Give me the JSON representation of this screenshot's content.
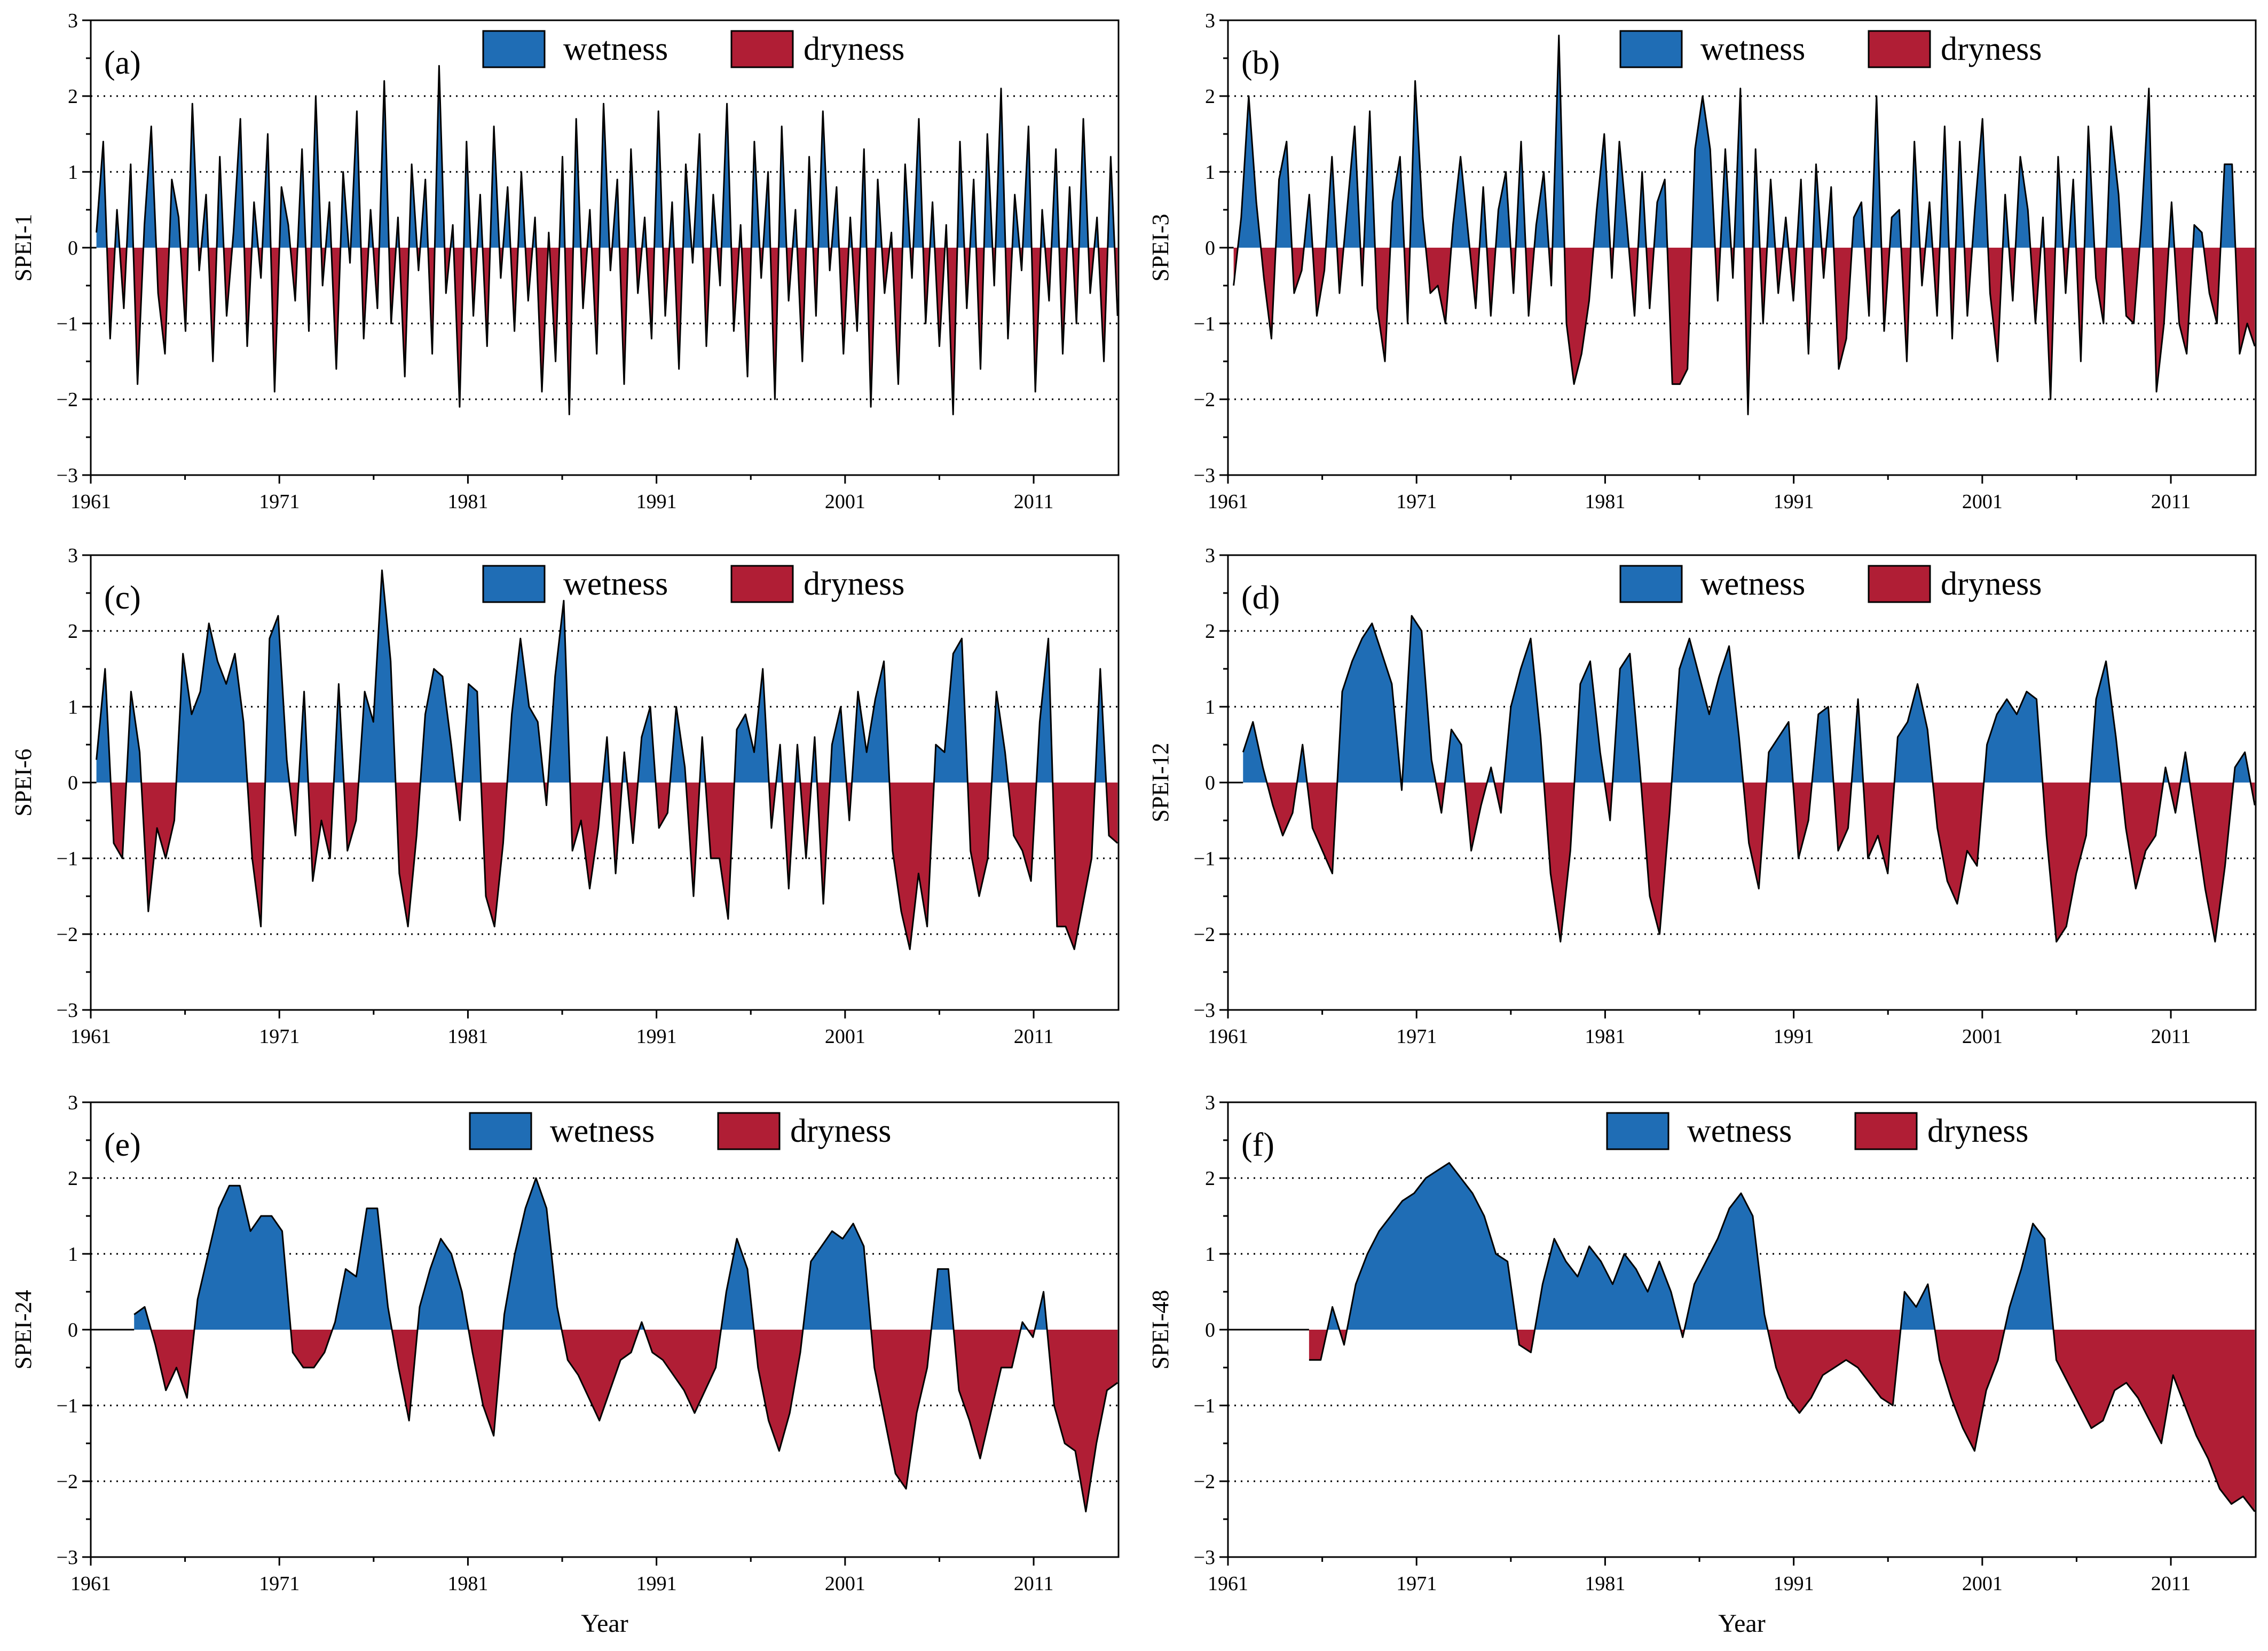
{
  "figure": {
    "year_label": "Year",
    "colors": {
      "wetness": "#1f6db5",
      "dryness": "#b01e35",
      "line": "#000000",
      "grid": "#000000"
    },
    "legend": {
      "wet_label": "wetness",
      "dry_label": "dryness"
    }
  },
  "chart_data": [
    {
      "type": "area",
      "panel_label": "(a)",
      "ylabel": "SPEI-1",
      "xlabel": "",
      "x_range": [
        1961,
        2015.5
      ],
      "ylim": [
        -3,
        3
      ],
      "y_ticks": [
        -3,
        -2,
        -1,
        0,
        1,
        2,
        3
      ],
      "x_ticks": [
        1961,
        1971,
        1981,
        1991,
        2001,
        2011
      ],
      "grid": "horizontal dotted at -2, -1, 1, 2",
      "legend_position": "top-center",
      "start_year": 1961.3,
      "points": [
        0.2,
        1.4,
        -1.2,
        0.5,
        -0.8,
        1.1,
        -1.8,
        0.3,
        1.6,
        -0.6,
        -1.4,
        0.9,
        0.4,
        -1.1,
        1.9,
        -0.3,
        0.7,
        -1.5,
        1.2,
        -0.9,
        0.2,
        1.7,
        -1.3,
        0.6,
        -0.4,
        1.5,
        -1.9,
        0.8,
        0.3,
        -0.7,
        1.3,
        -1.1,
        2.0,
        -0.5,
        0.6,
        -1.6,
        1.0,
        -0.2,
        1.8,
        -1.2,
        0.5,
        -0.8,
        2.2,
        -1.0,
        0.4,
        -1.7,
        1.1,
        -0.3,
        0.9,
        -1.4,
        2.4,
        -0.6,
        0.3,
        -2.1,
        1.4,
        -0.9,
        0.7,
        -1.3,
        1.6,
        -0.4,
        0.8,
        -1.1,
        1.0,
        -0.7,
        0.4,
        -1.9,
        0.2,
        -1.5,
        1.2,
        -2.2,
        1.7,
        -0.8,
        0.5,
        -1.4,
        1.9,
        -0.3,
        0.9,
        -1.8,
        1.3,
        -0.6,
        0.4,
        -1.2,
        1.8,
        -0.9,
        0.6,
        -1.6,
        1.1,
        -0.2,
        1.5,
        -1.3,
        0.7,
        -0.5,
        1.9,
        -1.1,
        0.3,
        -1.7,
        1.4,
        -0.4,
        1.0,
        -2.0,
        1.6,
        -0.7,
        0.5,
        -1.5,
        1.2,
        -0.9,
        1.8,
        -0.3,
        0.8,
        -1.4,
        0.4,
        -1.1,
        1.3,
        -2.1,
        0.9,
        -0.6,
        0.2,
        -1.8,
        1.1,
        -0.4,
        1.7,
        -1.0,
        0.6,
        -1.3,
        0.3,
        -2.2,
        1.4,
        -0.8,
        0.9,
        -1.6,
        1.5,
        -0.5,
        2.1,
        -1.2,
        0.7,
        -0.3,
        1.6,
        -1.9,
        0.5,
        -0.7,
        1.3,
        -1.4,
        0.8,
        -1.0,
        1.7,
        -0.6,
        0.4,
        -1.5,
        1.2,
        -0.9
      ]
    },
    {
      "type": "area",
      "panel_label": "(b)",
      "ylabel": "SPEI-3",
      "xlabel": "",
      "x_range": [
        1961,
        2015.5
      ],
      "ylim": [
        -3,
        3
      ],
      "y_ticks": [
        -3,
        -2,
        -1,
        0,
        1,
        2,
        3
      ],
      "x_ticks": [
        1961,
        1971,
        1981,
        1991,
        2001,
        2011
      ],
      "grid": "horizontal dotted at -2, -1, 1, 2",
      "legend_position": "top-center",
      "start_year": 1961.3,
      "points": [
        -0.5,
        0.4,
        2.0,
        0.6,
        -0.4,
        -1.2,
        0.9,
        1.4,
        -0.6,
        -0.3,
        0.7,
        -0.9,
        -0.3,
        1.2,
        -0.6,
        0.5,
        1.6,
        -0.5,
        1.8,
        -0.8,
        -1.5,
        0.6,
        1.2,
        -1.0,
        2.2,
        0.4,
        -0.6,
        -0.5,
        -1.0,
        0.3,
        1.2,
        0.2,
        -0.8,
        0.8,
        -0.9,
        0.5,
        1.0,
        -0.6,
        1.4,
        -0.9,
        0.3,
        1.0,
        -0.5,
        2.8,
        -1.0,
        -1.8,
        -1.4,
        -0.7,
        0.5,
        1.5,
        -0.4,
        1.4,
        0.3,
        -0.9,
        1.0,
        -0.8,
        0.6,
        0.9,
        -1.8,
        -1.8,
        -1.6,
        1.3,
        2.0,
        1.3,
        -0.7,
        1.3,
        -0.4,
        2.1,
        -2.2,
        1.3,
        -1.0,
        0.9,
        -0.6,
        0.4,
        -0.7,
        0.9,
        -1.4,
        1.1,
        -0.4,
        0.8,
        -1.6,
        -1.2,
        0.4,
        0.6,
        -0.9,
        2.0,
        -1.1,
        0.4,
        0.5,
        -1.5,
        1.4,
        -0.5,
        0.6,
        -0.9,
        1.6,
        -1.2,
        1.4,
        -0.9,
        0.5,
        1.7,
        -0.6,
        -1.5,
        0.7,
        -0.7,
        1.2,
        0.5,
        -1.0,
        0.4,
        -2.0,
        1.2,
        -0.6,
        0.9,
        -1.5,
        1.6,
        -0.4,
        -1.0,
        1.6,
        0.7,
        -0.9,
        -1.0,
        0.3,
        2.1,
        -1.9,
        -1.0,
        0.6,
        -1.0,
        -1.4,
        0.3,
        0.2,
        -0.6,
        -1.0,
        1.1,
        1.1,
        -1.4,
        -1.0,
        -1.3
      ]
    },
    {
      "type": "area",
      "panel_label": "(c)",
      "ylabel": "SPEI-6",
      "xlabel": "",
      "x_range": [
        1961,
        2015.5
      ],
      "ylim": [
        -3,
        3
      ],
      "y_ticks": [
        -3,
        -2,
        -1,
        0,
        1,
        2,
        3
      ],
      "x_ticks": [
        1961,
        1971,
        1981,
        1991,
        2001,
        2011
      ],
      "grid": "horizontal dotted at -2, -1, 1, 2",
      "legend_position": "top-center",
      "start_year": 1961.3,
      "points": [
        0.3,
        1.5,
        -0.8,
        -1.0,
        1.2,
        0.4,
        -1.7,
        -0.6,
        -1.0,
        -0.5,
        1.7,
        0.9,
        1.2,
        2.1,
        1.6,
        1.3,
        1.7,
        0.8,
        -1.0,
        -1.9,
        1.9,
        2.2,
        0.3,
        -0.7,
        1.2,
        -1.3,
        -0.5,
        -1.0,
        1.3,
        -0.9,
        -0.5,
        1.2,
        0.8,
        2.8,
        1.6,
        -1.2,
        -1.9,
        -0.7,
        0.9,
        1.5,
        1.4,
        0.5,
        -0.5,
        1.3,
        1.2,
        -1.5,
        -1.9,
        -0.8,
        0.9,
        1.9,
        1.0,
        0.8,
        -0.3,
        1.4,
        2.4,
        -0.9,
        -0.5,
        -1.4,
        -0.6,
        0.6,
        -1.2,
        0.4,
        -0.8,
        0.6,
        1.0,
        -0.6,
        -0.4,
        1.0,
        0.2,
        -1.5,
        0.6,
        -1.0,
        -1.0,
        -1.8,
        0.7,
        0.9,
        0.4,
        1.5,
        -0.6,
        0.5,
        -1.4,
        0.5,
        -1.0,
        0.6,
        -1.6,
        0.5,
        1.0,
        -0.5,
        1.2,
        0.4,
        1.1,
        1.6,
        -0.9,
        -1.7,
        -2.2,
        -1.2,
        -1.9,
        0.5,
        0.4,
        1.7,
        1.9,
        -0.9,
        -1.5,
        -1.0,
        1.2,
        0.4,
        -0.7,
        -0.9,
        -1.3,
        0.8,
        1.9,
        -1.9,
        -1.9,
        -2.2,
        -1.6,
        -1.0,
        1.5,
        -0.7,
        -0.8
      ]
    },
    {
      "type": "area",
      "panel_label": "(d)",
      "ylabel": "SPEI-12",
      "xlabel": "",
      "x_range": [
        1961,
        2015.5
      ],
      "ylim": [
        -3,
        3
      ],
      "y_ticks": [
        -3,
        -2,
        -1,
        0,
        1,
        2,
        3
      ],
      "x_ticks": [
        1961,
        1971,
        1981,
        1991,
        2001,
        2011
      ],
      "grid": "horizontal dotted at -2, -1, 1, 2",
      "legend_position": "top-center",
      "start_year": 1961.8,
      "points": [
        0.4,
        0.8,
        0.2,
        -0.3,
        -0.7,
        -0.4,
        0.5,
        -0.6,
        -0.9,
        -1.2,
        1.2,
        1.6,
        1.9,
        2.1,
        1.7,
        1.3,
        -0.1,
        2.2,
        2.0,
        0.3,
        -0.4,
        0.7,
        0.5,
        -0.9,
        -0.3,
        0.2,
        -0.4,
        1.0,
        1.5,
        1.9,
        0.6,
        -1.2,
        -2.1,
        -0.9,
        1.3,
        1.6,
        0.4,
        -0.5,
        1.5,
        1.7,
        0.2,
        -1.5,
        -2.0,
        -0.4,
        1.5,
        1.9,
        1.4,
        0.9,
        1.4,
        1.8,
        0.6,
        -0.8,
        -1.4,
        0.4,
        0.6,
        0.8,
        -1.0,
        -0.5,
        0.9,
        1.0,
        -0.9,
        -0.6,
        1.1,
        -1.0,
        -0.7,
        -1.2,
        0.6,
        0.8,
        1.3,
        0.7,
        -0.6,
        -1.3,
        -1.6,
        -0.9,
        -1.1,
        0.5,
        0.9,
        1.1,
        0.9,
        1.2,
        1.1,
        -0.7,
        -2.1,
        -1.9,
        -1.2,
        -0.7,
        1.1,
        1.6,
        0.6,
        -0.6,
        -1.4,
        -0.9,
        -0.7,
        0.2,
        -0.4,
        0.4,
        -0.5,
        -1.4,
        -2.1,
        -1.1,
        0.2,
        0.4,
        -0.3
      ]
    },
    {
      "type": "area",
      "panel_label": "(e)",
      "ylabel": "SPEI-24",
      "xlabel": "Year",
      "x_range": [
        1961,
        2015.5
      ],
      "ylim": [
        -3,
        3
      ],
      "y_ticks": [
        -3,
        -2,
        -1,
        0,
        1,
        2,
        3
      ],
      "x_ticks": [
        1961,
        1971,
        1981,
        1991,
        2001,
        2011
      ],
      "grid": "horizontal dotted at -2, -1, 1, 2",
      "legend_position": "top-center",
      "start_year": 1963.3,
      "points": [
        0.2,
        0.3,
        -0.2,
        -0.8,
        -0.5,
        -0.9,
        0.4,
        1.0,
        1.6,
        1.9,
        1.9,
        1.3,
        1.5,
        1.5,
        1.3,
        -0.3,
        -0.5,
        -0.5,
        -0.3,
        0.1,
        0.8,
        0.7,
        1.6,
        1.6,
        0.3,
        -0.5,
        -1.2,
        0.3,
        0.8,
        1.2,
        1.0,
        0.5,
        -0.3,
        -1.0,
        -1.4,
        0.2,
        1.0,
        1.6,
        2.0,
        1.6,
        0.3,
        -0.4,
        -0.6,
        -0.9,
        -1.2,
        -0.8,
        -0.4,
        -0.3,
        0.1,
        -0.3,
        -0.4,
        -0.6,
        -0.8,
        -1.1,
        -0.8,
        -0.5,
        0.5,
        1.2,
        0.8,
        -0.5,
        -1.2,
        -1.6,
        -1.1,
        -0.3,
        0.9,
        1.1,
        1.3,
        1.2,
        1.4,
        1.1,
        -0.5,
        -1.2,
        -1.9,
        -2.1,
        -1.1,
        -0.5,
        0.8,
        0.8,
        -0.8,
        -1.2,
        -1.7,
        -1.1,
        -0.5,
        -0.5,
        0.1,
        -0.1,
        0.5,
        -1.0,
        -1.5,
        -1.6,
        -2.4,
        -1.5,
        -0.8,
        -0.7
      ]
    },
    {
      "type": "area",
      "panel_label": "(f)",
      "ylabel": "SPEI-48",
      "xlabel": "Year",
      "x_range": [
        1961,
        2015.5
      ],
      "ylim": [
        -3,
        3
      ],
      "y_ticks": [
        -3,
        -2,
        -1,
        0,
        1,
        2,
        3
      ],
      "x_ticks": [
        1961,
        1971,
        1981,
        1991,
        2001,
        2011
      ],
      "grid": "horizontal dotted at -2, -1, 1, 2",
      "legend_position": "top-center",
      "start_year": 1965.3,
      "points": [
        -0.4,
        -0.4,
        0.3,
        -0.2,
        0.6,
        1.0,
        1.3,
        1.5,
        1.7,
        1.8,
        2.0,
        2.1,
        2.2,
        2.0,
        1.8,
        1.5,
        1.0,
        0.9,
        -0.2,
        -0.3,
        0.6,
        1.2,
        0.9,
        0.7,
        1.1,
        0.9,
        0.6,
        1.0,
        0.8,
        0.5,
        0.9,
        0.5,
        -0.1,
        0.6,
        0.9,
        1.2,
        1.6,
        1.8,
        1.5,
        0.2,
        -0.5,
        -0.9,
        -1.1,
        -0.9,
        -0.6,
        -0.5,
        -0.4,
        -0.5,
        -0.7,
        -0.9,
        -1.0,
        0.5,
        0.3,
        0.6,
        -0.4,
        -0.9,
        -1.3,
        -1.6,
        -0.8,
        -0.4,
        0.3,
        0.8,
        1.4,
        1.2,
        -0.4,
        -0.7,
        -1.0,
        -1.3,
        -1.2,
        -0.8,
        -0.7,
        -0.9,
        -1.2,
        -1.5,
        -0.6,
        -1.0,
        -1.4,
        -1.7,
        -2.1,
        -2.3,
        -2.2,
        -2.4
      ]
    }
  ]
}
